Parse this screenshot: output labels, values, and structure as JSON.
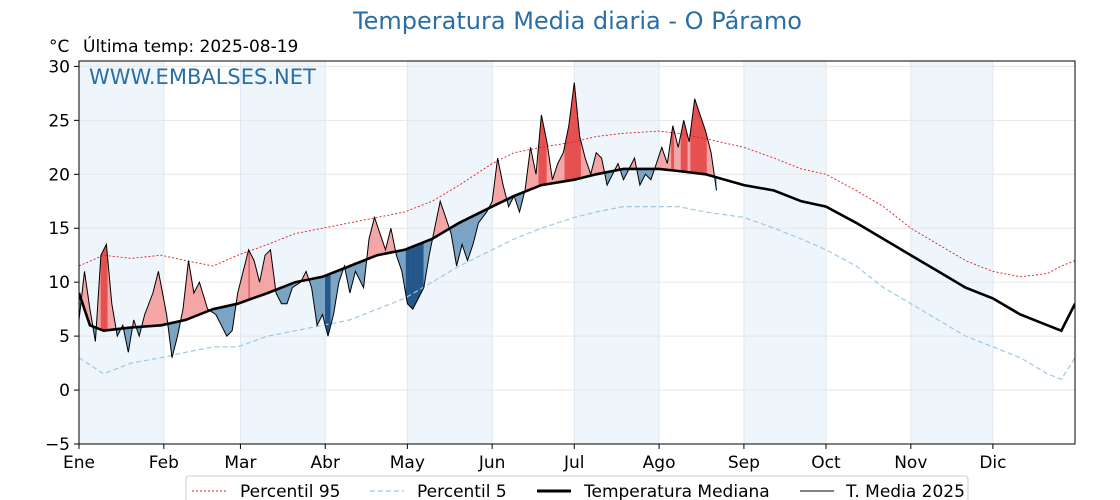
{
  "title": "Temperatura Media diaria - O Páramo",
  "unit_label": "°C",
  "last_temp_label": "Última temp: 2025-08-19",
  "watermark": "WWW.EMBALSES.NET",
  "chart_data": {
    "type": "line",
    "title": "Temperatura Media diaria - O Páramo",
    "ylabel": "°C",
    "ylim": [
      -5,
      30.5
    ],
    "y_ticks": [
      -5,
      0,
      5,
      10,
      15,
      20,
      25,
      30
    ],
    "x_ticks": [
      "Ene",
      "Feb",
      "Mar",
      "Abr",
      "May",
      "Jun",
      "Jul",
      "Ago",
      "Sep",
      "Oct",
      "Nov",
      "Dic"
    ],
    "grid": true,
    "legend_position": "bottom",
    "colors": {
      "p95": "#e31a1c",
      "p5": "#9ecae1",
      "median": "#000000",
      "current": "#000000",
      "above_fill": "#f4a6a6",
      "above_fill_strong": "#e55050",
      "below_fill": "#7aa3c4",
      "below_fill_strong": "#24578a",
      "month_band": "#eef5fb"
    },
    "series": [
      {
        "name": "Percentil 95",
        "style": "dotted-red",
        "points": [
          [
            1,
            11.5
          ],
          [
            10,
            12.5
          ],
          [
            20,
            12.2
          ],
          [
            31,
            12.5
          ],
          [
            40,
            12.0
          ],
          [
            50,
            11.5
          ],
          [
            59,
            12.5
          ],
          [
            70,
            13.5
          ],
          [
            80,
            14.5
          ],
          [
            90,
            15.0
          ],
          [
            100,
            15.5
          ],
          [
            110,
            16.0
          ],
          [
            120,
            16.5
          ],
          [
            130,
            17.5
          ],
          [
            140,
            19.0
          ],
          [
            152,
            21.0
          ],
          [
            160,
            22.0
          ],
          [
            170,
            22.5
          ],
          [
            182,
            23.0
          ],
          [
            190,
            23.5
          ],
          [
            200,
            23.8
          ],
          [
            213,
            24.0
          ],
          [
            220,
            23.8
          ],
          [
            230,
            23.3
          ],
          [
            244,
            22.5
          ],
          [
            255,
            21.5
          ],
          [
            265,
            20.5
          ],
          [
            274,
            20.0
          ],
          [
            285,
            18.5
          ],
          [
            295,
            17.0
          ],
          [
            305,
            15.0
          ],
          [
            315,
            13.5
          ],
          [
            325,
            12.0
          ],
          [
            335,
            11.0
          ],
          [
            345,
            10.5
          ],
          [
            355,
            10.8
          ],
          [
            360,
            11.5
          ],
          [
            365,
            12.0
          ]
        ]
      },
      {
        "name": "Percentil 5",
        "style": "dashed-lightblue",
        "points": [
          [
            1,
            3.0
          ],
          [
            10,
            1.5
          ],
          [
            20,
            2.5
          ],
          [
            31,
            3.0
          ],
          [
            40,
            3.5
          ],
          [
            50,
            4.0
          ],
          [
            59,
            4.0
          ],
          [
            70,
            5.0
          ],
          [
            80,
            5.5
          ],
          [
            90,
            6.0
          ],
          [
            100,
            6.5
          ],
          [
            110,
            7.5
          ],
          [
            120,
            8.5
          ],
          [
            130,
            10.0
          ],
          [
            140,
            11.5
          ],
          [
            152,
            13.0
          ],
          [
            160,
            14.0
          ],
          [
            170,
            15.0
          ],
          [
            182,
            16.0
          ],
          [
            190,
            16.5
          ],
          [
            200,
            17.0
          ],
          [
            213,
            17.0
          ],
          [
            220,
            17.0
          ],
          [
            230,
            16.5
          ],
          [
            244,
            16.0
          ],
          [
            255,
            15.0
          ],
          [
            265,
            14.0
          ],
          [
            274,
            13.0
          ],
          [
            285,
            11.5
          ],
          [
            295,
            9.5
          ],
          [
            305,
            8.0
          ],
          [
            315,
            6.5
          ],
          [
            325,
            5.0
          ],
          [
            335,
            4.0
          ],
          [
            345,
            3.0
          ],
          [
            355,
            1.5
          ],
          [
            360,
            1.0
          ],
          [
            365,
            3.0
          ]
        ]
      },
      {
        "name": "Temperatura Mediana",
        "style": "thick-black",
        "points": [
          [
            1,
            9.0
          ],
          [
            5,
            6.0
          ],
          [
            10,
            5.5
          ],
          [
            20,
            5.8
          ],
          [
            31,
            6.0
          ],
          [
            40,
            6.5
          ],
          [
            50,
            7.5
          ],
          [
            59,
            8.0
          ],
          [
            70,
            9.0
          ],
          [
            80,
            10.0
          ],
          [
            90,
            10.5
          ],
          [
            100,
            11.5
          ],
          [
            110,
            12.5
          ],
          [
            120,
            13.0
          ],
          [
            130,
            14.0
          ],
          [
            140,
            15.5
          ],
          [
            152,
            17.0
          ],
          [
            160,
            18.0
          ],
          [
            170,
            19.0
          ],
          [
            182,
            19.5
          ],
          [
            190,
            20.0
          ],
          [
            200,
            20.5
          ],
          [
            213,
            20.5
          ],
          [
            220,
            20.3
          ],
          [
            230,
            20.0
          ],
          [
            244,
            19.0
          ],
          [
            255,
            18.5
          ],
          [
            265,
            17.5
          ],
          [
            274,
            17.0
          ],
          [
            285,
            15.5
          ],
          [
            295,
            14.0
          ],
          [
            305,
            12.5
          ],
          [
            315,
            11.0
          ],
          [
            325,
            9.5
          ],
          [
            335,
            8.5
          ],
          [
            345,
            7.0
          ],
          [
            355,
            6.0
          ],
          [
            360,
            5.5
          ],
          [
            365,
            8.0
          ]
        ]
      },
      {
        "name": "T. Media 2025",
        "style": "thin-black",
        "points": [
          [
            1,
            6.5
          ],
          [
            3,
            11.0
          ],
          [
            5,
            7.5
          ],
          [
            7,
            4.5
          ],
          [
            9,
            12.5
          ],
          [
            11,
            13.5
          ],
          [
            13,
            8.0
          ],
          [
            15,
            5.0
          ],
          [
            17,
            6.0
          ],
          [
            19,
            3.5
          ],
          [
            21,
            6.5
          ],
          [
            23,
            5.0
          ],
          [
            25,
            7.0
          ],
          [
            28,
            9.0
          ],
          [
            30,
            11.0
          ],
          [
            33,
            7.0
          ],
          [
            35,
            3.0
          ],
          [
            37,
            5.0
          ],
          [
            39,
            7.5
          ],
          [
            41,
            12.0
          ],
          [
            43,
            9.0
          ],
          [
            45,
            10.0
          ],
          [
            48,
            7.5
          ],
          [
            51,
            7.0
          ],
          [
            53,
            6.0
          ],
          [
            55,
            5.0
          ],
          [
            57,
            5.5
          ],
          [
            59,
            9.0
          ],
          [
            61,
            11.0
          ],
          [
            63,
            13.0
          ],
          [
            65,
            12.0
          ],
          [
            67,
            10.0
          ],
          [
            69,
            12.5
          ],
          [
            71,
            13.0
          ],
          [
            73,
            9.0
          ],
          [
            75,
            8.0
          ],
          [
            77,
            8.0
          ],
          [
            79,
            9.5
          ],
          [
            82,
            10.0
          ],
          [
            84,
            11.0
          ],
          [
            86,
            9.5
          ],
          [
            88,
            6.0
          ],
          [
            90,
            7.0
          ],
          [
            92,
            5.0
          ],
          [
            94,
            7.0
          ],
          [
            96,
            10.0
          ],
          [
            98,
            11.5
          ],
          [
            100,
            9.0
          ],
          [
            102,
            11.0
          ],
          [
            105,
            9.5
          ],
          [
            107,
            14.0
          ],
          [
            109,
            16.0
          ],
          [
            111,
            14.5
          ],
          [
            113,
            13.0
          ],
          [
            115,
            15.0
          ],
          [
            117,
            12.5
          ],
          [
            119,
            11.0
          ],
          [
            121,
            8.0
          ],
          [
            123,
            7.5
          ],
          [
            125,
            8.5
          ],
          [
            127,
            9.5
          ],
          [
            129,
            12.5
          ],
          [
            131,
            15.0
          ],
          [
            133,
            17.5
          ],
          [
            135,
            16.0
          ],
          [
            137,
            14.5
          ],
          [
            139,
            11.5
          ],
          [
            141,
            13.5
          ],
          [
            143,
            12.0
          ],
          [
            145,
            13.5
          ],
          [
            147,
            15.5
          ],
          [
            150,
            16.5
          ],
          [
            152,
            17.5
          ],
          [
            154,
            21.5
          ],
          [
            156,
            19.0
          ],
          [
            158,
            17.0
          ],
          [
            160,
            18.0
          ],
          [
            162,
            16.5
          ],
          [
            164,
            18.5
          ],
          [
            166,
            22.5
          ],
          [
            168,
            20.0
          ],
          [
            170,
            25.5
          ],
          [
            172,
            23.0
          ],
          [
            174,
            19.5
          ],
          [
            176,
            21.0
          ],
          [
            178,
            22.0
          ],
          [
            180,
            24.5
          ],
          [
            182,
            28.5
          ],
          [
            184,
            23.5
          ],
          [
            186,
            21.5
          ],
          [
            188,
            20.0
          ],
          [
            190,
            22.0
          ],
          [
            192,
            21.5
          ],
          [
            194,
            19.0
          ],
          [
            196,
            20.0
          ],
          [
            198,
            21.0
          ],
          [
            200,
            19.5
          ],
          [
            202,
            20.5
          ],
          [
            204,
            21.5
          ],
          [
            206,
            19.0
          ],
          [
            208,
            20.0
          ],
          [
            210,
            19.5
          ],
          [
            212,
            21.0
          ],
          [
            214,
            22.5
          ],
          [
            216,
            21.0
          ],
          [
            218,
            24.5
          ],
          [
            220,
            22.5
          ],
          [
            222,
            25.0
          ],
          [
            224,
            23.0
          ],
          [
            226,
            27.0
          ],
          [
            228,
            25.5
          ],
          [
            230,
            24.0
          ],
          [
            232,
            22.0
          ],
          [
            234,
            18.5
          ]
        ]
      }
    ]
  },
  "legend": {
    "p95": "Percentil 95",
    "p5": "Percentil 5",
    "median": "Temperatura Mediana",
    "current": "T. Media 2025"
  }
}
